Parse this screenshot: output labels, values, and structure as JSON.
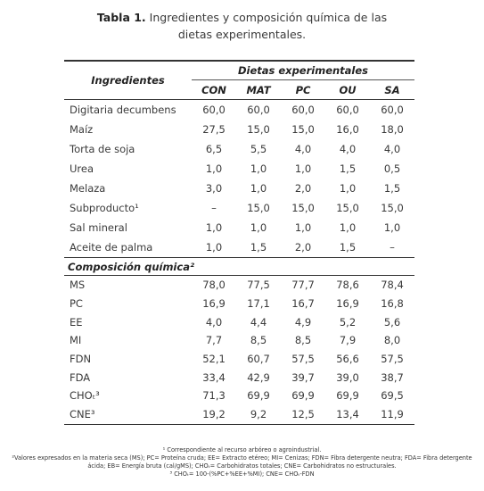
{
  "title": {
    "label": "Tabla 1.",
    "text": "Ingredientes y composición química de las dietas experimentales."
  },
  "table": {
    "header": "Ingredientes",
    "group": "Dietas experimentales",
    "columns": [
      "CON",
      "MAT",
      "PC",
      "OU",
      "SA"
    ],
    "rows": [
      [
        "Digitaria decumbens",
        "60,0",
        "60,0",
        "60,0",
        "60,0",
        "60,0"
      ],
      [
        "Maíz",
        "27,5",
        "15,0",
        "15,0",
        "16,0",
        "18,0"
      ],
      [
        "Torta de soja",
        "6,5",
        "5,5",
        "4,0",
        "4,0",
        "4,0"
      ],
      [
        "Urea",
        "1,0",
        "1,0",
        "1,0",
        "1,5",
        "0,5"
      ],
      [
        "Melaza",
        "3,0",
        "1,0",
        "2,0",
        "1,0",
        "1,5"
      ],
      [
        "Subproducto¹",
        "–",
        "15,0",
        "15,0",
        "15,0",
        "15,0"
      ],
      [
        "Sal mineral",
        "1,0",
        "1,0",
        "1,0",
        "1,0",
        "1,0"
      ],
      [
        "Aceite de palma",
        "1,0",
        "1,5",
        "2,0",
        "1,5",
        "–"
      ]
    ],
    "section": "Composición química²",
    "section_rows": [
      [
        "MS",
        "78,0",
        "77,5",
        "77,7",
        "78,6",
        "78,4"
      ],
      [
        "PC",
        "16,9",
        "17,1",
        "16,7",
        "16,9",
        "16,8"
      ],
      [
        "EE",
        "4,0",
        "4,4",
        "4,9",
        "5,2",
        "5,6"
      ],
      [
        "MI",
        "7,7",
        "8,5",
        "8,5",
        "7,9",
        "8,0"
      ],
      [
        "FDN",
        "52,1",
        "60,7",
        "57,5",
        "56,6",
        "57,5"
      ],
      [
        "FDA",
        "33,4",
        "42,9",
        "39,7",
        "39,0",
        "38,7"
      ],
      [
        "CHOₜ³",
        "71,3",
        "69,9",
        "69,9",
        "69,9",
        "69,5"
      ],
      [
        "CNE³",
        "19,2",
        "9,2",
        "12,5",
        "13,4",
        "11,9"
      ]
    ]
  },
  "footnotes": [
    "¹ Correspondiente al recurso arbóreo o agroindustrial.",
    "²Valores expresados en la materia seca (MS); PC= Proteína cruda; EE= Extracto etéreo; MI= Cenizas; FDN= Fibra detergente neutra; FDA= Fibra detergente ácida; EB= Energía bruta (cal/gMS); CHOₜ= Carbohidratos totales; CNE= Carbohidratos no estructurales.",
    "³ CHOₜ= 100-(%PC+%EE+%MI); CNE= CHOₜ-FDN"
  ]
}
